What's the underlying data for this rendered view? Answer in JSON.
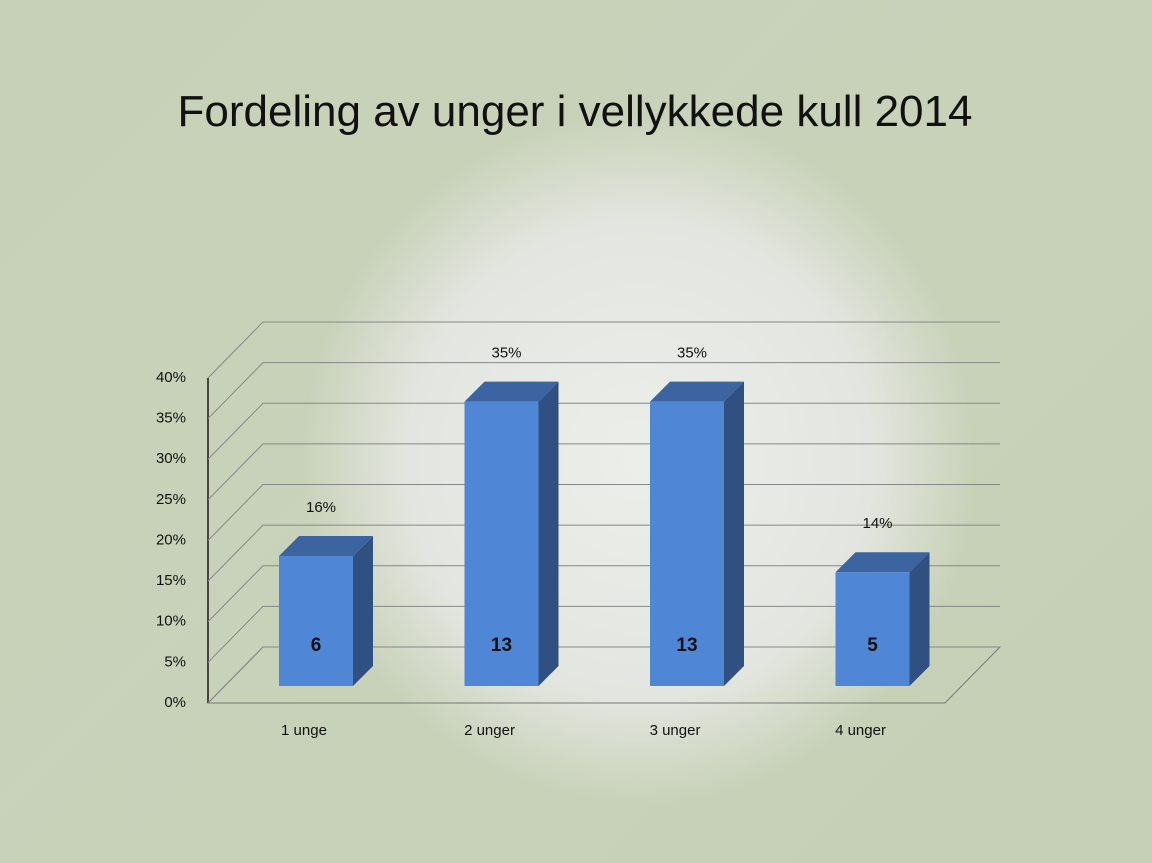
{
  "chart_data": {
    "type": "bar3d",
    "title": "Fordeling av unger i vellykkede kull 2014",
    "categories": [
      "1 unge",
      "2 unger",
      "3 unger",
      "4 unger"
    ],
    "values": [
      16,
      35,
      35,
      14
    ],
    "value_labels": [
      "16%",
      "35%",
      "35%",
      "14%"
    ],
    "counts": [
      6,
      13,
      13,
      5
    ],
    "color": "#4f86d6",
    "ylim": [
      0,
      40
    ],
    "yticks": [
      {
        "value": 0,
        "label": "0%"
      },
      {
        "value": 5,
        "label": "5%"
      },
      {
        "value": 10,
        "label": "10%"
      },
      {
        "value": 15,
        "label": "15%"
      },
      {
        "value": 20,
        "label": "20%"
      },
      {
        "value": 25,
        "label": "25%"
      },
      {
        "value": 30,
        "label": "30%"
      },
      {
        "value": 35,
        "label": "35%"
      },
      {
        "value": 40,
        "label": "40%"
      }
    ],
    "grid": true
  }
}
